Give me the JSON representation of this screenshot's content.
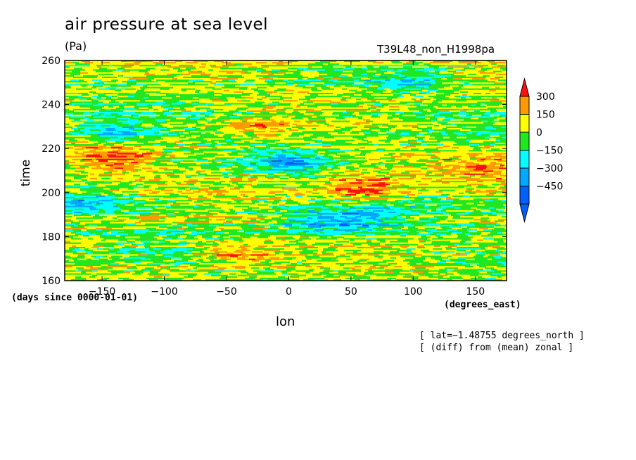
{
  "chart_data": {
    "type": "heatmap",
    "title": "air pressure at sea level",
    "units": "(Pa)",
    "run_id": "T39L48_non_H1998pa",
    "xlabel": "lon",
    "x_units": "(degrees_east)",
    "ylabel": "time",
    "y_units": "(days since 0000-01-01)",
    "xlim": [
      -180,
      175
    ],
    "ylim": [
      160,
      260
    ],
    "x_ticks": [
      -150,
      -100,
      -50,
      0,
      50,
      100,
      150
    ],
    "y_ticks": [
      160,
      180,
      200,
      220,
      240,
      260
    ],
    "colorbar": {
      "levels": [
        300,
        150,
        0,
        -150,
        -300,
        -450
      ],
      "labels": [
        "300",
        "150",
        "0",
        "−150",
        "−300",
        "−450"
      ],
      "colors": [
        "#ff1010",
        "#ff9a00",
        "#ffff00",
        "#22e622",
        "#00ffff",
        "#00a8ff",
        "#0060ff"
      ]
    },
    "annotations": [
      "[ lat=−1.48755 degrees_north ]",
      "[ (diff) from (mean) zonal ]"
    ],
    "features": [
      {
        "lon": -140,
        "time": 215,
        "value": 300
      },
      {
        "lon": -40,
        "time": 172,
        "value": 300
      },
      {
        "lon": -20,
        "time": 229,
        "value": 200
      },
      {
        "lon": 60,
        "time": 202,
        "value": 300
      },
      {
        "lon": 160,
        "time": 212,
        "value": 200
      },
      {
        "lon": -140,
        "time": 228,
        "value": -300
      },
      {
        "lon": -160,
        "time": 195,
        "value": -250
      },
      {
        "lon": 0,
        "time": 214,
        "value": -350
      },
      {
        "lon": 20,
        "time": 187,
        "value": -300
      },
      {
        "lon": 60,
        "time": 188,
        "value": -300
      },
      {
        "lon": 100,
        "time": 250,
        "value": -200
      }
    ]
  }
}
